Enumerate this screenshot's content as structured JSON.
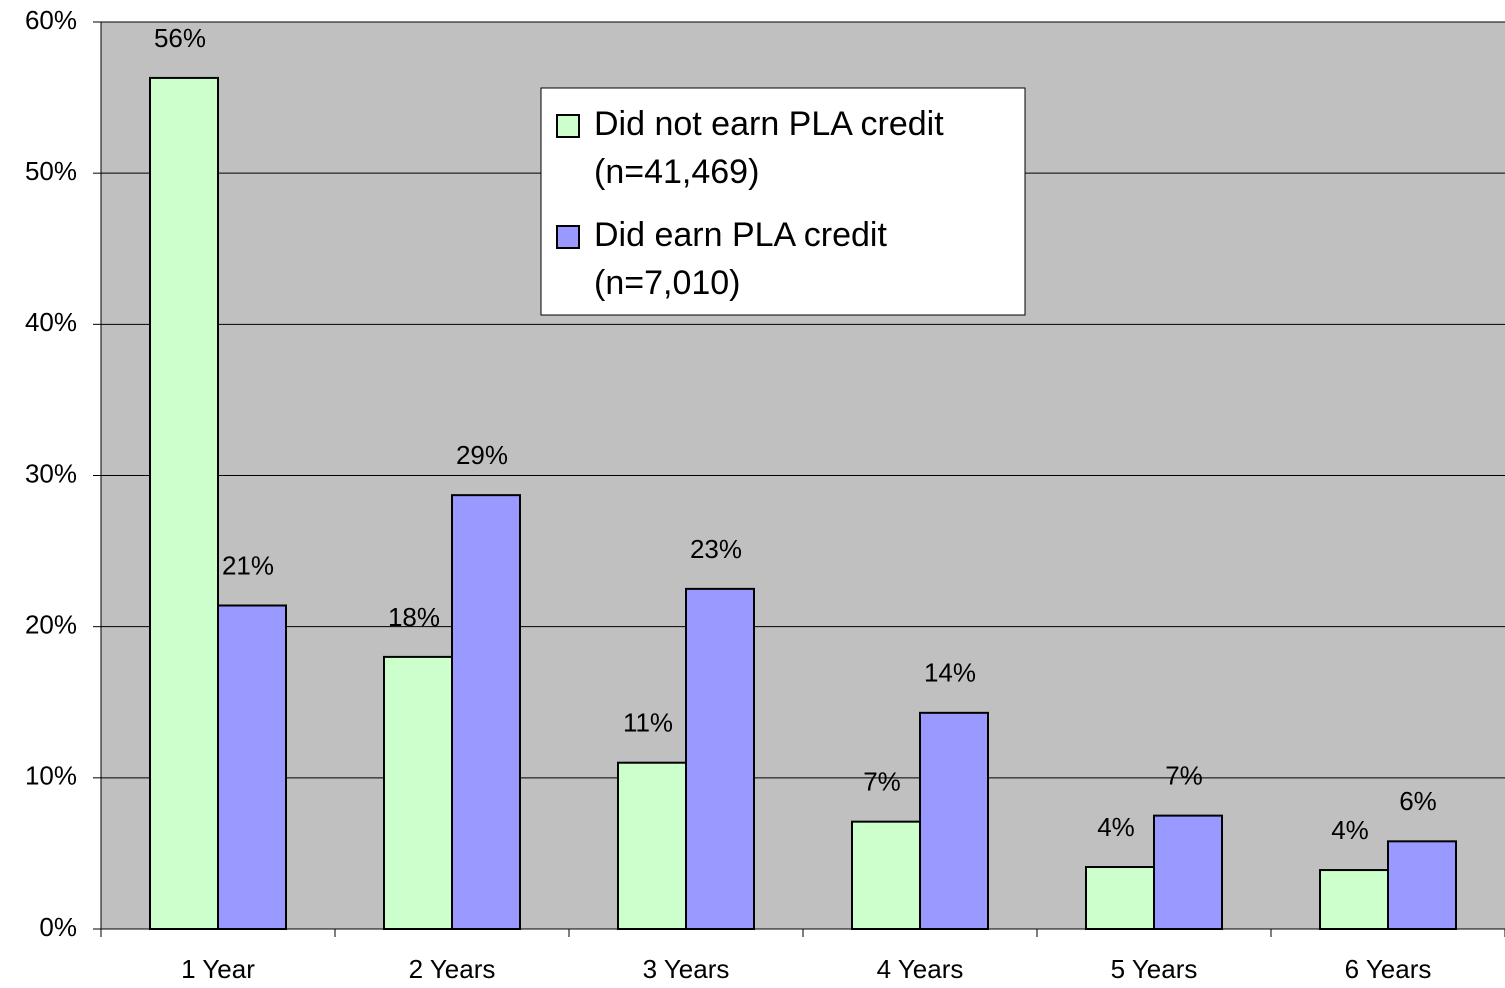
{
  "chart_data": {
    "type": "bar",
    "categories": [
      "1 Year",
      "2 Years",
      "3 Years",
      "4 Years",
      "5 Years",
      "6 Years"
    ],
    "series": [
      {
        "name": "Did not earn PLA credit (n=41,469)",
        "color": "#ccffcc",
        "values": [
          56.3,
          18.0,
          11.0,
          7.1,
          4.1,
          3.9
        ],
        "value_labels": [
          "56%",
          "18%",
          "11%",
          "7%",
          "4%",
          "4%"
        ]
      },
      {
        "name": "Did earn PLA credit (n=7,010)",
        "color": "#9999ff",
        "values": [
          21.4,
          28.7,
          22.5,
          14.3,
          7.5,
          5.8
        ],
        "value_labels": [
          "21%",
          "29%",
          "23%",
          "14%",
          "7%",
          "6%"
        ]
      }
    ],
    "ylim": [
      0,
      60
    ],
    "yticks": [
      {
        "value": 0,
        "label": "0%"
      },
      {
        "value": 10,
        "label": "10%"
      },
      {
        "value": 20,
        "label": "20%"
      },
      {
        "value": 30,
        "label": "30%"
      },
      {
        "value": 40,
        "label": "40%"
      },
      {
        "value": 50,
        "label": "50%"
      },
      {
        "value": 60,
        "label": "60%"
      }
    ],
    "grid": true,
    "legend": "top-center"
  }
}
